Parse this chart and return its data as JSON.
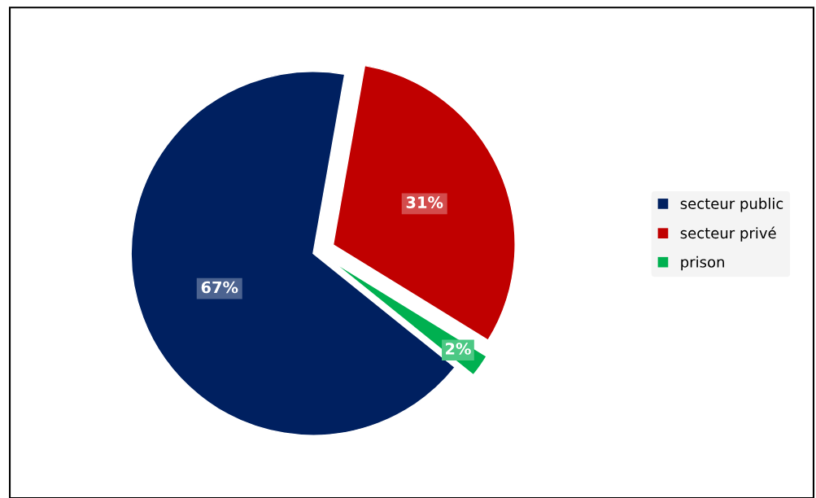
{
  "chart_data": {
    "type": "pie",
    "categories": [
      "secteur public",
      "secteur privé",
      "prison"
    ],
    "values": [
      67,
      31,
      2
    ],
    "colors": [
      "#002060",
      "#c00000",
      "#00b050"
    ],
    "value_labels": [
      "67%",
      "31%",
      "2%"
    ],
    "legend": "right"
  }
}
